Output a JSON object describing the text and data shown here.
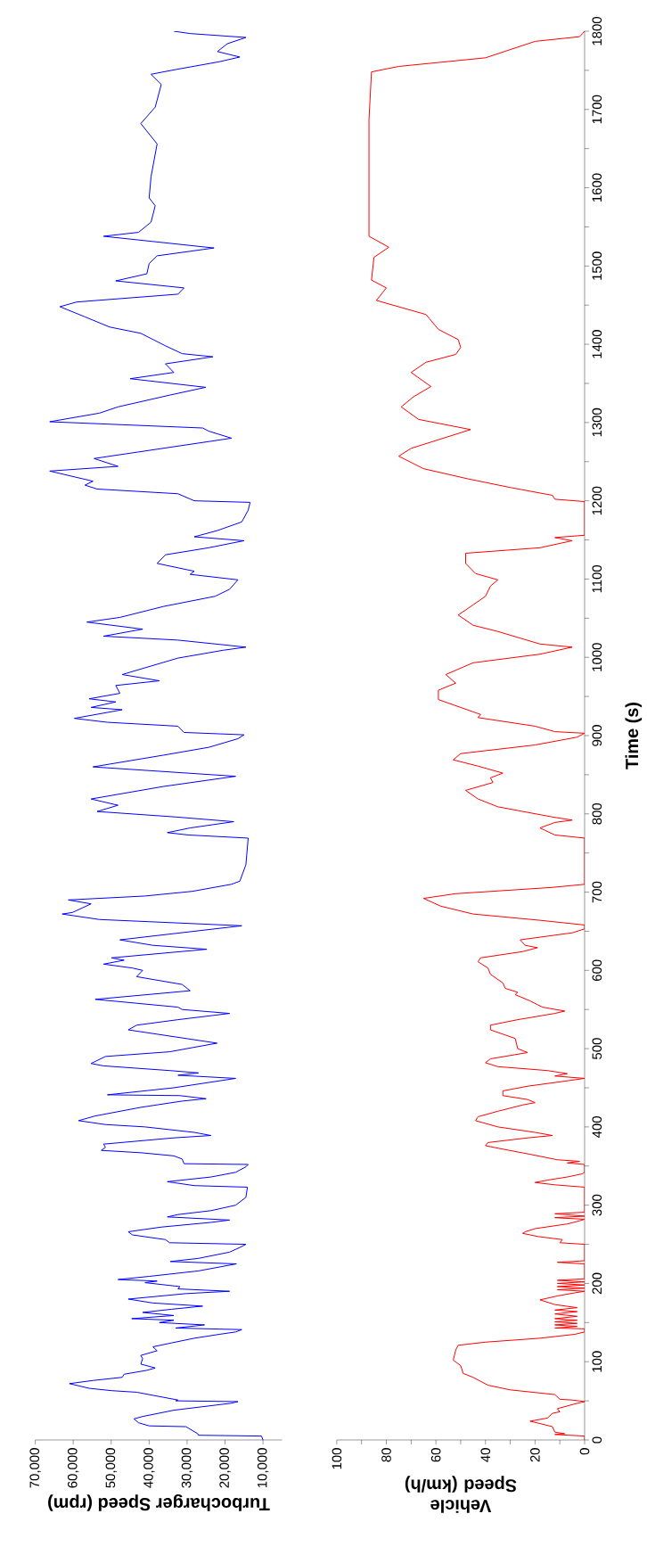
{
  "chart_data": [
    {
      "type": "line",
      "orientation": "horizontal",
      "xlabel": "Turbocharger Speed (rpm)",
      "color": "#0000ff",
      "ylim": [
        0,
        1800
      ],
      "xlim": [
        70000,
        5000
      ],
      "tick_labels": "x",
      "xticks": [
        {
          "value": 10000,
          "label": "10,000"
        },
        {
          "value": 20000,
          "label": "20,000"
        },
        {
          "value": 30000,
          "label": "30,000"
        },
        {
          "value": 40000,
          "label": "40,000"
        },
        {
          "value": 50000,
          "label": "50,000"
        },
        {
          "value": 60000,
          "label": "60,000"
        },
        {
          "value": 70000,
          "label": "70,000"
        }
      ],
      "x": [
        0,
        5,
        6,
        8,
        17,
        18,
        22,
        27,
        30,
        38,
        47,
        49,
        50,
        51,
        61,
        63,
        66,
        72,
        76,
        80,
        84,
        89,
        92,
        97,
        104,
        108,
        114,
        119,
        124,
        130,
        135,
        138,
        141,
        143,
        147,
        150,
        153,
        155,
        159,
        163,
        167,
        171,
        175,
        180,
        187,
        190,
        193,
        196,
        201,
        203,
        205,
        209,
        216,
        225,
        228,
        232,
        240,
        246,
        250,
        252,
        256,
        262,
        266,
        272,
        278,
        281,
        285,
        288,
        293,
        300,
        310,
        323,
        325,
        330,
        336,
        342,
        349,
        352,
        353,
        359,
        363,
        367,
        370,
        374,
        378,
        386,
        389,
        393,
        400,
        403,
        408,
        414,
        425,
        433,
        436,
        440,
        441,
        450,
        462,
        466,
        469,
        472,
        478,
        481,
        490,
        496,
        507,
        524,
        530,
        537,
        545,
        550,
        553,
        563,
        574,
        582,
        592,
        600,
        603,
        608,
        613,
        616,
        627,
        632,
        639,
        657,
        665,
        672,
        674,
        685,
        690,
        695,
        701,
        710,
        714,
        735,
        769,
        773,
        776,
        782,
        790,
        796,
        803,
        811,
        819,
        835,
        848,
        860,
        875,
        885,
        896,
        901,
        904,
        912,
        917,
        922,
        933,
        936,
        943,
        947,
        954,
        964,
        970,
        978,
        999,
        1009,
        1013,
        1022,
        1027,
        1036,
        1045,
        1051,
        1065,
        1078,
        1087,
        1099,
        1106,
        1110,
        1120,
        1131,
        1140,
        1149,
        1154,
        1162,
        1173,
        1188,
        1198,
        1200,
        1209,
        1215,
        1220,
        1225,
        1238,
        1244,
        1254,
        1280,
        1289,
        1293,
        1301,
        1312,
        1320,
        1335,
        1345,
        1356,
        1364,
        1375,
        1384,
        1388,
        1398,
        1414,
        1422,
        1435,
        1448,
        1454,
        1464,
        1472,
        1481,
        1490,
        1503,
        1513,
        1523,
        1538,
        1543,
        1556,
        1577,
        1587,
        1614,
        1656,
        1682,
        1703,
        1732,
        1745,
        1751,
        1761,
        1767,
        1774,
        1784,
        1792,
        1797,
        1800
      ],
      "values": [
        10000,
        10400,
        27000,
        27200,
        30300,
        40000,
        42800,
        44000,
        41700,
        33500,
        18300,
        16600,
        33000,
        32400,
        43300,
        49900,
        55800,
        61000,
        54800,
        47100,
        46600,
        40600,
        38400,
        42200,
        41700,
        42200,
        37900,
        39000,
        34100,
        28100,
        21500,
        17200,
        15600,
        33000,
        25400,
        37300,
        33500,
        44600,
        33500,
        41700,
        34100,
        25900,
        39000,
        45500,
        30300,
        18800,
        32400,
        31900,
        41100,
        37900,
        48200,
        40000,
        27000,
        17000,
        34400,
        27000,
        18800,
        16100,
        14500,
        34600,
        35700,
        44400,
        45500,
        36800,
        23700,
        18800,
        35200,
        32400,
        23700,
        17200,
        14500,
        14100,
        28100,
        35200,
        23700,
        17200,
        14500,
        13900,
        30800,
        31300,
        33500,
        42200,
        52600,
        51500,
        52000,
        33500,
        23700,
        28100,
        41100,
        51500,
        58600,
        54200,
        42200,
        31300,
        25000,
        31900,
        51000,
        33500,
        17200,
        32400,
        27000,
        34600,
        52000,
        55300,
        51500,
        34600,
        22100,
        45500,
        43300,
        32400,
        18800,
        31300,
        32400,
        54200,
        29200,
        31300,
        43300,
        41700,
        44400,
        52000,
        46600,
        49900,
        24800,
        39000,
        47700,
        15600,
        53100,
        62900,
        60200,
        55300,
        61300,
        41100,
        28600,
        18300,
        16100,
        14500,
        13900,
        29700,
        35200,
        29200,
        17700,
        33000,
        53700,
        48200,
        55300,
        36200,
        17200,
        54800,
        36200,
        24300,
        16600,
        15000,
        30800,
        32400,
        51000,
        59700,
        47100,
        55300,
        48800,
        55800,
        47700,
        48800,
        37300,
        47100,
        32400,
        20500,
        14500,
        32400,
        52000,
        41700,
        56400,
        47700,
        36200,
        22600,
        18800,
        16600,
        29200,
        28100,
        37900,
        35700,
        24300,
        15000,
        28100,
        22000,
        15600,
        13900,
        13400,
        28100,
        32400,
        53700,
        56900,
        54800,
        66200,
        48200,
        54500,
        18300,
        24300,
        25900,
        66200,
        53100,
        48200,
        34600,
        25100,
        45000,
        33500,
        35700,
        23200,
        31300,
        35700,
        42200,
        50400,
        56900,
        63500,
        59100,
        32400,
        30800,
        48800,
        40600,
        40000,
        37900,
        22900,
        52000,
        42800,
        39500,
        38400,
        40000,
        39500,
        37900,
        42200,
        38400,
        36800,
        39500,
        33000,
        21500,
        16100,
        22000,
        19400,
        14500,
        29200,
        33500
      ]
    },
    {
      "type": "line",
      "orientation": "horizontal",
      "xlabel": "Vehicle Speed (km/h)",
      "ylabel": "Time (s)",
      "color": "#ff0000",
      "ylim": [
        0,
        1800
      ],
      "xlim": [
        100,
        0
      ],
      "xticks": [
        0,
        {
          "value": 10,
          "label": null
        },
        20,
        {
          "value": 30,
          "label": null
        },
        40,
        {
          "value": 50,
          "label": null
        },
        60,
        {
          "value": 70,
          "label": null
        },
        80,
        {
          "value": 90,
          "label": null
        },
        100
      ],
      "yticks": [
        0,
        {
          "value": 50,
          "label": null
        },
        100,
        {
          "value": 150,
          "label": null
        },
        200,
        {
          "value": 250,
          "label": null
        },
        300,
        {
          "value": 350,
          "label": null
        },
        400,
        {
          "value": 450,
          "label": null
        },
        500,
        {
          "value": 550,
          "label": null
        },
        600,
        {
          "value": 650,
          "label": null
        },
        700,
        {
          "value": 750,
          "label": null
        },
        800,
        {
          "value": 850,
          "label": null
        },
        900,
        {
          "value": 950,
          "label": null
        },
        1000,
        {
          "value": 1050,
          "label": null
        },
        1100,
        {
          "value": 1150,
          "label": null
        },
        1200,
        {
          "value": 1250,
          "label": null
        },
        1300,
        {
          "value": 1350,
          "label": null
        },
        1400,
        {
          "value": 1450,
          "label": null
        },
        1500,
        {
          "value": 1550,
          "label": null
        },
        1600,
        {
          "value": 1650,
          "label": null
        },
        1700,
        {
          "value": 1750,
          "label": null
        },
        1800
      ],
      "x": [
        0,
        5,
        7,
        8,
        10,
        17,
        21,
        24,
        28,
        34,
        36,
        40,
        46,
        49,
        51,
        52,
        58,
        64,
        70,
        80,
        85,
        95,
        102,
        115,
        121,
        125,
        130,
        135,
        138,
        142,
        143,
        145,
        147,
        149,
        151,
        153,
        155,
        158,
        161,
        164,
        166,
        169,
        173,
        179,
        184,
        188,
        190,
        192,
        194,
        196,
        198,
        200,
        202,
        204,
        206,
        225,
        227,
        229,
        250,
        252,
        256,
        260,
        264,
        266,
        270,
        276,
        280,
        282,
        284,
        286,
        289,
        291,
        323,
        326,
        329,
        332,
        336,
        340,
        342,
        352,
        354,
        356,
        358,
        365,
        371,
        376,
        380,
        386,
        389,
        393,
        400,
        408,
        413,
        420,
        428,
        431,
        435,
        440,
        446,
        452,
        458,
        462,
        465,
        468,
        472,
        477,
        482,
        487,
        495,
        500,
        513,
        524,
        530,
        537,
        545,
        548,
        553,
        561,
        569,
        572,
        577,
        584,
        595,
        603,
        611,
        616,
        624,
        629,
        632,
        639,
        648,
        653,
        658,
        664,
        672,
        682,
        692,
        698,
        706,
        710,
        769,
        773,
        782,
        789,
        792,
        796,
        809,
        819,
        830,
        840,
        846,
        852,
        861,
        869,
        877,
        888,
        898,
        903,
        905,
        912,
        923,
        927,
        946,
        958,
        967,
        978,
        993,
        1004,
        1013,
        1017,
        1033,
        1041,
        1054,
        1067,
        1078,
        1091,
        1099,
        1107,
        1120,
        1133,
        1140,
        1149,
        1153,
        1156,
        1199,
        1202,
        1207,
        1217,
        1228,
        1241,
        1257,
        1267,
        1291,
        1304,
        1320,
        1333,
        1346,
        1364,
        1377,
        1387,
        1396,
        1406,
        1419,
        1438,
        1456,
        1472,
        1482,
        1511,
        1524,
        1538,
        1629,
        1687,
        1748,
        1755,
        1766,
        1787,
        1793,
        1800
      ],
      "values": [
        0,
        0,
        12,
        8,
        12,
        13,
        18,
        22,
        15,
        13,
        10,
        11,
        4,
        0,
        5,
        10,
        12,
        30,
        39,
        45,
        49,
        50,
        53,
        52,
        51,
        40,
        18,
        4,
        0,
        0,
        12,
        3,
        12,
        3,
        12,
        3,
        12,
        3,
        12,
        3,
        12,
        3,
        12,
        18,
        11,
        4,
        0,
        11,
        0,
        11,
        0,
        11,
        0,
        11,
        0,
        0,
        11,
        0,
        0,
        10,
        9,
        19,
        25,
        24,
        20,
        7,
        2,
        0,
        12,
        0,
        12,
        0,
        0,
        12,
        20,
        15,
        7,
        1,
        0,
        0,
        7,
        2,
        11,
        22,
        32,
        40,
        39,
        23,
        13,
        20,
        35,
        44,
        43,
        35,
        25,
        20,
        23,
        33,
        33,
        23,
        9,
        0,
        12,
        7,
        15,
        35,
        40,
        38,
        23,
        27,
        28,
        38,
        38,
        27,
        12,
        8,
        17,
        22,
        28,
        27,
        32,
        33,
        38,
        39,
        43,
        42,
        25,
        19,
        24,
        26,
        5,
        0,
        0,
        18,
        45,
        58,
        65,
        52,
        13,
        0,
        0,
        12,
        18,
        12,
        5,
        13,
        35,
        43,
        48,
        37,
        38,
        33,
        43,
        53,
        50,
        20,
        3,
        0,
        12,
        20,
        43,
        42,
        59,
        59,
        52,
        56,
        45,
        18,
        5,
        18,
        35,
        45,
        51,
        45,
        40,
        38,
        35,
        44,
        48,
        48,
        18,
        5,
        12,
        0,
        0,
        12,
        13,
        30,
        47,
        65,
        75,
        70,
        46,
        67,
        74,
        69,
        62,
        70,
        64,
        52,
        50,
        51,
        59,
        64,
        84,
        80,
        86,
        85,
        79,
        87,
        87,
        87,
        86,
        75,
        40,
        20,
        2,
        0
      ]
    }
  ]
}
